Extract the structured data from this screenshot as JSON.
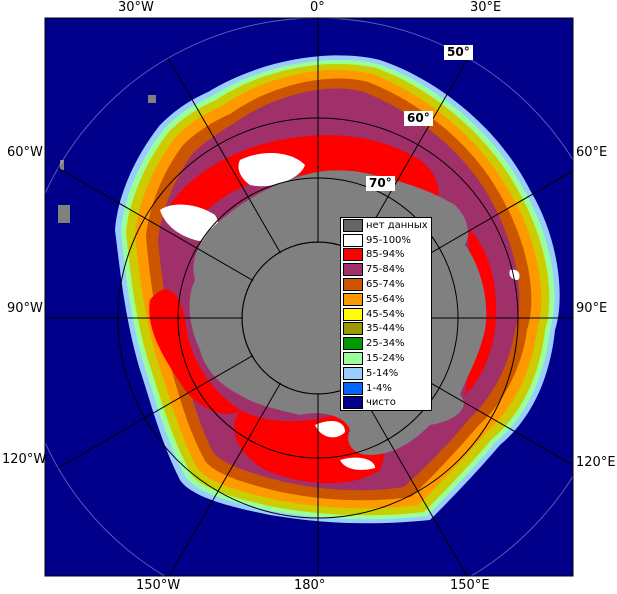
{
  "map": {
    "longitude_labels": {
      "lon_30w_top": "30°W",
      "lon_0": "0°",
      "lon_30e_top": "30°E",
      "lon_60w": "60°W",
      "lon_60e": "60°E",
      "lon_90w": "90°W",
      "lon_90e": "90°E",
      "lon_120w": "120°W",
      "lon_120e": "120°E",
      "lon_150w": "150°W",
      "lon_180": "180°",
      "lon_150e": "150°E"
    },
    "latitude_labels": {
      "lat_50": "50°",
      "lat_60": "60°",
      "lat_70": "70°"
    }
  },
  "legend": {
    "items": [
      {
        "label": "нет данных",
        "color": "#666666"
      },
      {
        "label": "95-100%",
        "color": "#ffffff"
      },
      {
        "label": "85-94%",
        "color": "#ff0000"
      },
      {
        "label": "75-84%",
        "color": "#a0306a"
      },
      {
        "label": "65-74%",
        "color": "#cc5500"
      },
      {
        "label": "55-64%",
        "color": "#ff9900"
      },
      {
        "label": "45-54%",
        "color": "#ffff00"
      },
      {
        "label": "35-44%",
        "color": "#999900"
      },
      {
        "label": "25-34%",
        "color": "#009900"
      },
      {
        "label": "15-24%",
        "color": "#99ff99"
      },
      {
        "label": "5-14%",
        "color": "#99ccff"
      },
      {
        "label": "1-4%",
        "color": "#0066ff"
      },
      {
        "label": "чисто",
        "color": "#00008b"
      }
    ]
  }
}
